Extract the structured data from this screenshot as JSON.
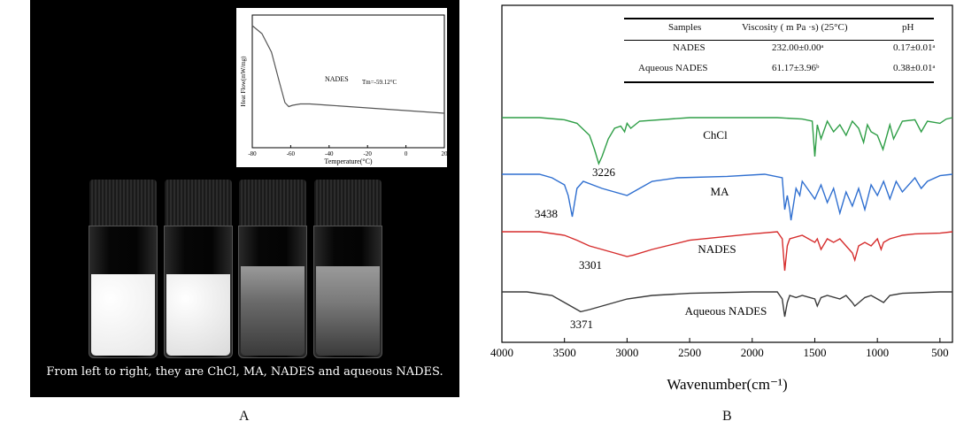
{
  "panel_a": {
    "label": "A",
    "caption": "From left to right, they are ChCl, MA, NADES and aqueous NADES.",
    "vials": [
      {
        "name": "ChCl",
        "fill_color": "#e8e8e8",
        "fill_level": 0.62
      },
      {
        "name": "MA",
        "fill_color": "#dadada",
        "fill_level": 0.62
      },
      {
        "name": "NADES",
        "fill_color": "#6a6a6a",
        "fill_level": 0.68
      },
      {
        "name": "aqueous NADES",
        "fill_color": "#7a7a7a",
        "fill_level": 0.68
      }
    ]
  },
  "panel_b": {
    "label": "B",
    "table": {
      "headers": [
        "Samples",
        "Viscosity ( m Pa ·s) (25°C)",
        "pH"
      ],
      "rows": [
        [
          "NADES",
          "232.00±0.00ᵃ",
          "0.17±0.01ᵃ"
        ],
        [
          "Aqueous NADES",
          "61.17±3.96ᵇ",
          "0.38±0.01ᵃ"
        ]
      ]
    }
  },
  "chart_data": [
    {
      "type": "line",
      "title": "",
      "xlabel": "Temperature(°C)",
      "ylabel": "Heat Flow(mW/mg)",
      "xlim": [
        -80,
        20
      ],
      "x_ticks": [
        "-80",
        "-60",
        "-40",
        "-20",
        "0",
        "20"
      ],
      "series": [
        {
          "name": "NADES",
          "x": [
            -80,
            -75,
            -70,
            -66,
            -63,
            -61,
            -59,
            -55,
            -50,
            -40,
            -20,
            0,
            20
          ],
          "y": [
            0.92,
            0.86,
            0.72,
            0.5,
            0.34,
            0.31,
            0.32,
            0.33,
            0.33,
            0.32,
            0.3,
            0.28,
            0.26
          ]
        }
      ],
      "annotations": [
        "NADES",
        "Tm=-59.12°C"
      ]
    },
    {
      "type": "line",
      "title": "",
      "xlabel": "Wavenumber(cm⁻¹)",
      "ylabel": "",
      "xlim": [
        4000,
        400
      ],
      "x_ticks": [
        "4000",
        "3500",
        "3000",
        "2500",
        "2000",
        "1500",
        "1000",
        "500"
      ],
      "series": [
        {
          "name": "ChCl",
          "color": "#2e9e46",
          "offset": 3,
          "x": [
            4000,
            3700,
            3500,
            3400,
            3300,
            3260,
            3226,
            3200,
            3150,
            3100,
            3050,
            3020,
            3000,
            2970,
            2900,
            2500,
            2100,
            1800,
            1600,
            1520,
            1500,
            1480,
            1450,
            1400,
            1350,
            1300,
            1250,
            1200,
            1150,
            1110,
            1080,
            1050,
            1000,
            955,
            900,
            870,
            800,
            700,
            650,
            600,
            500,
            450,
            400
          ],
          "y": [
            0,
            0,
            -0.03,
            -0.08,
            -0.25,
            -0.45,
            -0.65,
            -0.55,
            -0.3,
            -0.15,
            -0.12,
            -0.2,
            -0.08,
            -0.15,
            -0.05,
            0,
            0,
            0,
            -0.02,
            -0.05,
            -0.55,
            -0.1,
            -0.3,
            -0.05,
            -0.2,
            -0.1,
            -0.25,
            -0.05,
            -0.15,
            -0.35,
            -0.1,
            -0.2,
            -0.25,
            -0.45,
            -0.1,
            -0.3,
            -0.05,
            -0.03,
            -0.2,
            -0.05,
            -0.08,
            -0.02,
            0
          ]
        },
        {
          "name": "MA",
          "color": "#2f6fd0",
          "offset": 2,
          "x": [
            4000,
            3700,
            3600,
            3500,
            3470,
            3438,
            3400,
            3350,
            3200,
            3000,
            2900,
            2800,
            2600,
            2200,
            1900,
            1760,
            1740,
            1720,
            1700,
            1690,
            1650,
            1620,
            1600,
            1500,
            1450,
            1400,
            1350,
            1300,
            1250,
            1200,
            1150,
            1100,
            1050,
            1000,
            950,
            900,
            850,
            800,
            700,
            650,
            600,
            500,
            400
          ],
          "y": [
            0,
            0,
            -0.05,
            -0.15,
            -0.3,
            -0.6,
            -0.2,
            -0.1,
            -0.2,
            -0.3,
            -0.2,
            -0.1,
            -0.05,
            -0.03,
            0,
            -0.05,
            -0.5,
            -0.3,
            -0.5,
            -0.65,
            -0.2,
            -0.3,
            -0.1,
            -0.35,
            -0.15,
            -0.4,
            -0.2,
            -0.55,
            -0.25,
            -0.45,
            -0.2,
            -0.5,
            -0.15,
            -0.3,
            -0.1,
            -0.35,
            -0.1,
            -0.25,
            -0.05,
            -0.2,
            -0.1,
            -0.02,
            0
          ]
        },
        {
          "name": "NADES",
          "color": "#d62d2d",
          "offset": 1,
          "x": [
            4000,
            3700,
            3500,
            3400,
            3301,
            3200,
            3100,
            3000,
            2950,
            2800,
            2500,
            2000,
            1800,
            1760,
            1740,
            1720,
            1700,
            1600,
            1500,
            1480,
            1450,
            1400,
            1350,
            1300,
            1250,
            1200,
            1180,
            1150,
            1100,
            1050,
            1000,
            970,
            950,
            900,
            800,
            700,
            500,
            400
          ],
          "y": [
            0,
            0,
            -0.05,
            -0.12,
            -0.2,
            -0.25,
            -0.3,
            -0.35,
            -0.33,
            -0.25,
            -0.12,
            -0.03,
            0,
            -0.1,
            -0.55,
            -0.2,
            -0.1,
            -0.05,
            -0.15,
            -0.1,
            -0.25,
            -0.1,
            -0.15,
            -0.1,
            -0.2,
            -0.3,
            -0.4,
            -0.2,
            -0.15,
            -0.2,
            -0.1,
            -0.25,
            -0.15,
            -0.1,
            -0.05,
            -0.03,
            -0.02,
            0
          ]
        },
        {
          "name": "Aqueous NADES",
          "color": "#3a3a3a",
          "offset": 0,
          "x": [
            4000,
            3800,
            3600,
            3500,
            3400,
            3371,
            3300,
            3200,
            3000,
            2800,
            2500,
            2000,
            1800,
            1760,
            1740,
            1720,
            1700,
            1650,
            1600,
            1500,
            1480,
            1450,
            1400,
            1300,
            1250,
            1200,
            1180,
            1100,
            1050,
            1000,
            950,
            900,
            800,
            500,
            400
          ],
          "y": [
            0,
            0,
            -0.05,
            -0.15,
            -0.25,
            -0.28,
            -0.25,
            -0.2,
            -0.1,
            -0.05,
            -0.02,
            0,
            0,
            -0.1,
            -0.35,
            -0.15,
            -0.05,
            -0.08,
            -0.05,
            -0.1,
            -0.2,
            -0.08,
            -0.05,
            -0.1,
            -0.05,
            -0.15,
            -0.2,
            -0.08,
            -0.05,
            -0.1,
            -0.15,
            -0.05,
            -0.02,
            0,
            0
          ]
        }
      ],
      "annotations": [
        "3226",
        "3438",
        "3301",
        "3371"
      ],
      "legend": "inline labels"
    }
  ]
}
